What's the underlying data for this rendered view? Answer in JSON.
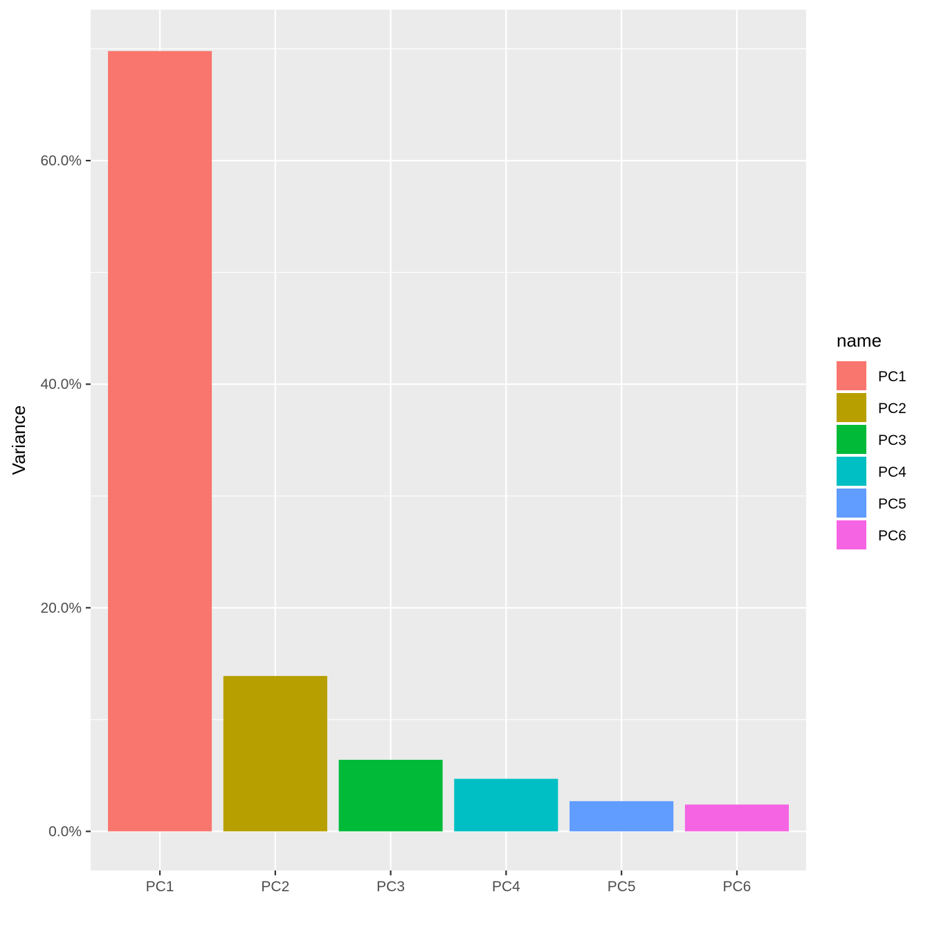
{
  "chart_data": {
    "type": "bar",
    "categories": [
      "PC1",
      "PC2",
      "PC3",
      "PC4",
      "PC5",
      "PC6"
    ],
    "values": [
      69.8,
      13.9,
      6.4,
      4.7,
      2.7,
      2.4
    ],
    "value_unit": "%",
    "colors": [
      "#F8766D",
      "#B79F00",
      "#00BA38",
      "#00BFC4",
      "#619CFF",
      "#F564E3"
    ],
    "title": "",
    "xlabel": "",
    "ylabel": "Variance",
    "ylim": [
      -3.5,
      73.5
    ],
    "yticks": [
      0,
      20,
      40,
      60
    ],
    "ytick_labels": [
      "0.0%",
      "20.0%",
      "40.0%",
      "60.0%"
    ],
    "grid": true,
    "panel_background": "#EBEBEB",
    "gridline_color": "#FFFFFF",
    "legend": {
      "title": "name",
      "placement": "right",
      "entries": [
        "PC1",
        "PC2",
        "PC3",
        "PC4",
        "PC5",
        "PC6"
      ]
    }
  }
}
